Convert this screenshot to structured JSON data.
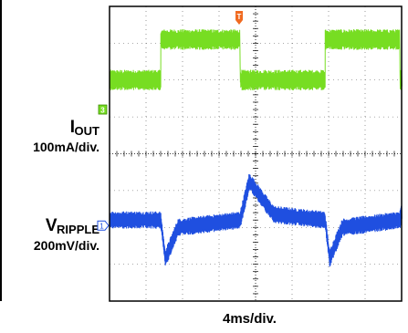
{
  "chart_data": {
    "type": "line",
    "title": "",
    "xlabel": "4ms/div.",
    "ylabel": "",
    "grid": true,
    "divisions": {
      "x": 8,
      "y": 8
    },
    "x_unit": "ms",
    "x_per_div": 4,
    "xlim": [
      0,
      32
    ],
    "trigger_marker": "T",
    "series": [
      {
        "name": "I",
        "name_sub": "OUT",
        "scale": "100mA/div.",
        "channel": "3",
        "color": "#77dd22",
        "ground_div": 5.2,
        "x": [
          0,
          5.6,
          5.61,
          14.3,
          14.31,
          23.6,
          23.61,
          31.8,
          31.81,
          32
        ],
        "y_div": [
          6.0,
          6.0,
          7.1,
          7.1,
          6.0,
          6.0,
          7.1,
          7.1,
          6.0,
          6.0
        ],
        "noise_div": 0.28
      },
      {
        "name": "V",
        "name_sub": "RIPPLE",
        "scale": "200mV/div.",
        "channel": "1",
        "color": "#1f4fe0",
        "ground_div": 2.05,
        "x": [
          0,
          5.6,
          6.1,
          7.5,
          14.3,
          15.3,
          18.0,
          23.6,
          24.1,
          25.5,
          31.8,
          32.8,
          32
        ],
        "y_div": [
          2.2,
          2.2,
          1.15,
          2.0,
          2.2,
          3.25,
          2.35,
          2.2,
          1.15,
          2.0,
          2.2,
          3.25,
          2.5
        ],
        "noise_div": 0.24
      }
    ]
  }
}
